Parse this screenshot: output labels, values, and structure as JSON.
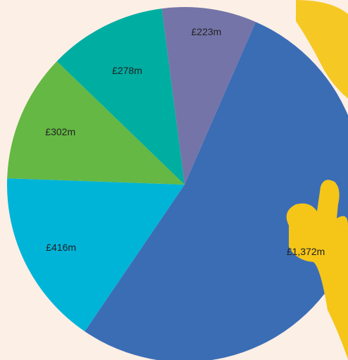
{
  "chart_data": {
    "type": "pie",
    "slices": [
      {
        "label": "£1,372m",
        "value": 1372,
        "color": "#3b6db5"
      },
      {
        "label": "£416m",
        "value": 416,
        "color": "#00b4d8"
      },
      {
        "label": "£302m",
        "value": 302,
        "color": "#64b843"
      },
      {
        "label": "£278m",
        "value": 278,
        "color": "#00ada1"
      },
      {
        "label": "£223m",
        "value": 223,
        "color": "#7474a8"
      }
    ],
    "start_angle_deg": 23.6,
    "direction": "clockwise",
    "label_color": "#222222",
    "background_color": "#fcefe6"
  },
  "decoration": {
    "mascot_color": "#f5c518",
    "mascot_icon": "thumbs-up-mascot-icon"
  }
}
